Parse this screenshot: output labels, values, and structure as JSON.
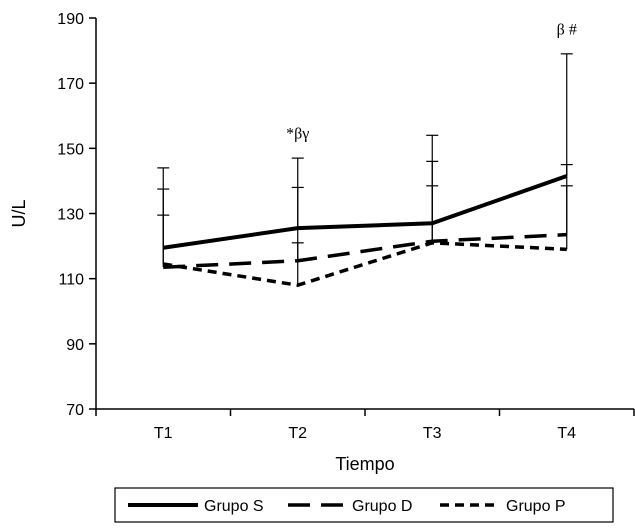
{
  "chart_data": {
    "type": "line",
    "title": "",
    "xlabel": "Tiempo",
    "ylabel": "U/L",
    "categories": [
      "T1",
      "T2",
      "T3",
      "T4"
    ],
    "ylim": [
      70,
      190
    ],
    "yticks": [
      70,
      90,
      110,
      130,
      150,
      170,
      190
    ],
    "grid": false,
    "legend_position": "bottom",
    "series": [
      {
        "name": "Grupo S",
        "style": "solid",
        "values": [
          119.5,
          125.5,
          127,
          141.5
        ],
        "error_upper": [
          144,
          147,
          154,
          179
        ],
        "color": "#000000"
      },
      {
        "name": "Grupo D",
        "style": "long-dash",
        "values": [
          113.5,
          115.5,
          121.5,
          123.5
        ],
        "error_upper": [
          137.5,
          138,
          146,
          145
        ],
        "color": "#000000"
      },
      {
        "name": "Grupo P",
        "style": "short-dash",
        "values": [
          114.5,
          108,
          121,
          119
        ],
        "error_upper": [
          129.5,
          121,
          138.5,
          138.5
        ],
        "color": "#000000"
      }
    ],
    "annotations": [
      {
        "category": "T2",
        "text": "*βγ",
        "y": 153
      },
      {
        "category": "T4",
        "text": "β #",
        "y": 185
      }
    ]
  }
}
